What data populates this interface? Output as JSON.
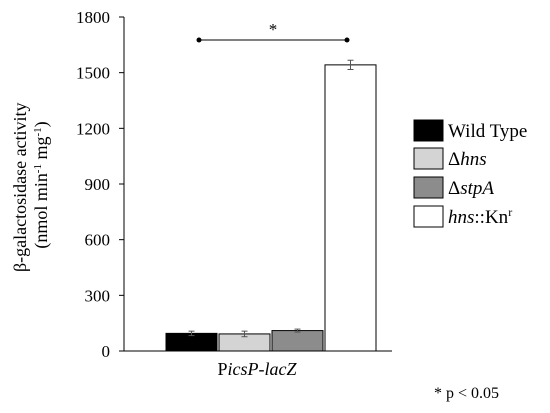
{
  "chart_data": {
    "type": "bar",
    "categories": [
      "PicsP-lacZ"
    ],
    "ylabel_line1": "β-galactosidase activity",
    "ylabel_line2": "(nmol min⁻¹ mg⁻¹)",
    "ylim": [
      0,
      1800
    ],
    "yticks": [
      "0",
      "300",
      "600",
      "900",
      "1200",
      "1500",
      "1800"
    ],
    "series": [
      {
        "name": "Wild Type",
        "values": [
          95
        ],
        "error": [
          12
        ],
        "color": "#000000"
      },
      {
        "name": "Δhns",
        "values": [
          92
        ],
        "error": [
          15
        ],
        "color": "#d4d4d4"
      },
      {
        "name": "ΔstpA",
        "values": [
          110
        ],
        "error": [
          8
        ],
        "color": "#8c8c8c"
      },
      {
        "name": "hns::Knr",
        "values": [
          1542
        ],
        "error": [
          25
        ],
        "color": "#ffffff"
      }
    ],
    "significance_marker": "*",
    "footnote": "* p < 0.05",
    "grid": false,
    "legend_position": "right"
  },
  "legend": {
    "wild_type": "Wild Type",
    "hns_prefix": "Δ",
    "hns_italic": "hns",
    "stpa_prefix": "Δ",
    "stpa_italic": "stpA",
    "kn_italic": "hns",
    "kn_suffix": "::Kn",
    "kn_sup": "r"
  },
  "category_label": {
    "prefix": "P",
    "italic": "icsP-lacZ"
  },
  "ylabel": {
    "line1": "β-galactosidase activity",
    "line2_a": "(nmol min",
    "line2_sup1": "-1",
    "line2_b": " mg",
    "line2_sup2": "-1",
    "line2_c": ")"
  }
}
